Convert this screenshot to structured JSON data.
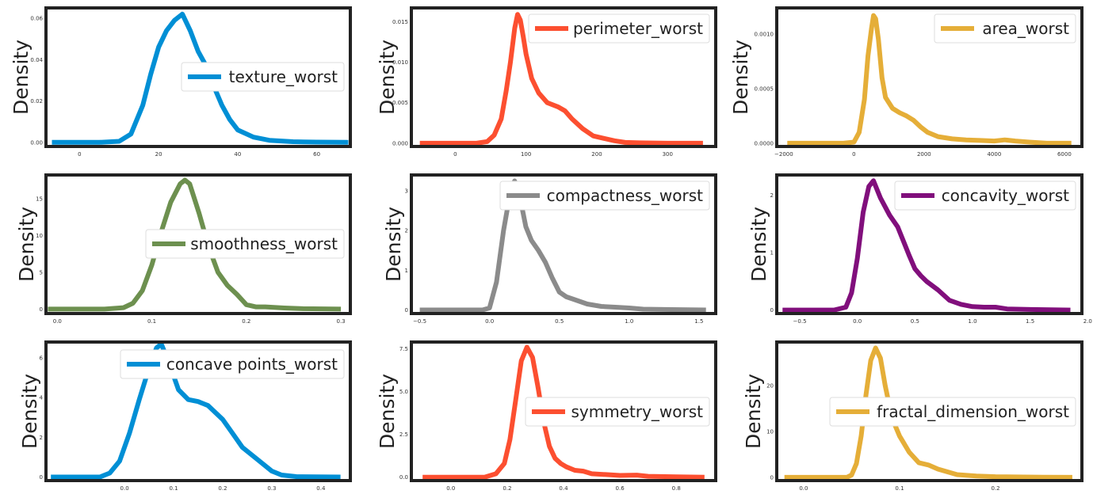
{
  "chart_data": [
    {
      "type": "line",
      "ylabel": "Density",
      "series": [
        {
          "name": "texture_worst",
          "color": "#008fd5"
        }
      ],
      "xlim": [
        -8.5,
        68.5
      ],
      "ylim": [
        -0.002,
        0.065
      ],
      "xticks": [
        0,
        20,
        40,
        60
      ],
      "xtick_labels": [
        "0",
        "20",
        "40",
        "60"
      ],
      "yticks": [
        0,
        0.02,
        0.04,
        0.06
      ],
      "ytick_labels": [
        "0.00",
        "0.02",
        "0.04",
        "0.06"
      ],
      "legend": "center-right",
      "x": [
        -7,
        5,
        10,
        13,
        16,
        18,
        20,
        22,
        24,
        26,
        28,
        30,
        32,
        34,
        36,
        38,
        40,
        44,
        48,
        54,
        60,
        68
      ],
      "y": [
        0,
        0,
        0.0005,
        0.004,
        0.018,
        0.033,
        0.046,
        0.054,
        0.059,
        0.062,
        0.054,
        0.044,
        0.037,
        0.027,
        0.018,
        0.011,
        0.006,
        0.0025,
        0.001,
        0.0003,
        0.0001,
        0
      ]
    },
    {
      "type": "line",
      "ylabel": "Density",
      "series": [
        {
          "name": "perimeter_worst",
          "color": "#fc4f30"
        }
      ],
      "xlim": [
        -62,
        368
      ],
      "ylim": [
        -0.0004,
        0.0167
      ],
      "xticks": [
        0,
        100,
        200,
        300
      ],
      "xtick_labels": [
        "0",
        "100",
        "200",
        "300"
      ],
      "yticks": [
        0,
        0.005,
        0.01,
        0.015
      ],
      "ytick_labels": [
        "0.000",
        "0.005",
        "0.010",
        "0.015"
      ],
      "legend": "top-right",
      "x": [
        -50,
        30,
        45,
        55,
        65,
        72,
        78,
        84,
        88,
        92,
        96,
        100,
        108,
        118,
        130,
        145,
        155,
        165,
        180,
        195,
        210,
        225,
        240,
        260,
        300,
        350
      ],
      "y": [
        0,
        0,
        0.0002,
        0.001,
        0.003,
        0.0065,
        0.01,
        0.0142,
        0.0159,
        0.0152,
        0.0132,
        0.011,
        0.008,
        0.0062,
        0.005,
        0.0045,
        0.004,
        0.003,
        0.0018,
        0.0009,
        0.0006,
        0.0003,
        0.0001,
        5e-05,
        0,
        0
      ]
    },
    {
      "type": "line",
      "ylabel": "Density",
      "series": [
        {
          "name": "area_worst",
          "color": "#e5ae38"
        }
      ],
      "xlim": [
        -2200,
        6500
      ],
      "ylim": [
        -3e-05,
        0.00124
      ],
      "xticks": [
        -2000,
        0,
        2000,
        4000,
        6000
      ],
      "xtick_labels": [
        "−2000",
        "0",
        "2000",
        "4000",
        "6000"
      ],
      "yticks": [
        0,
        0.0005,
        0.001
      ],
      "ytick_labels": [
        "0.0000",
        "0.0005",
        "0.0010"
      ],
      "legend": "top-right",
      "x": [
        -1900,
        -300,
        0,
        150,
        300,
        400,
        500,
        560,
        620,
        700,
        800,
        900,
        1100,
        1300,
        1500,
        1700,
        1900,
        2100,
        2400,
        2800,
        3200,
        3600,
        4000,
        4300,
        4600,
        5000,
        5500,
        6200
      ],
      "y": [
        0,
        0,
        1e-05,
        0.0001,
        0.0004,
        0.0008,
        0.00105,
        0.00117,
        0.00114,
        0.00095,
        0.0006,
        0.00042,
        0.00032,
        0.00028,
        0.00025,
        0.00021,
        0.00015,
        0.0001,
        6e-05,
        4e-05,
        3e-05,
        2.5e-05,
        2e-05,
        3e-05,
        2e-05,
        1e-05,
        0,
        0
      ]
    },
    {
      "type": "line",
      "ylabel": "Density",
      "series": [
        {
          "name": "smoothness_worst",
          "color": "#6d904f"
        }
      ],
      "xlim": [
        -0.012,
        0.31
      ],
      "ylim": [
        -0.6,
        18.2
      ],
      "xticks": [
        0.0,
        0.1,
        0.2,
        0.3
      ],
      "xtick_labels": [
        "0.0",
        "0.1",
        "0.2",
        "0.3"
      ],
      "yticks": [
        0,
        5,
        10,
        15
      ],
      "ytick_labels": [
        "0",
        "5",
        "10",
        "15"
      ],
      "legend": "center-right",
      "x": [
        -0.01,
        0.05,
        0.07,
        0.08,
        0.09,
        0.1,
        0.11,
        0.12,
        0.13,
        0.135,
        0.14,
        0.15,
        0.16,
        0.17,
        0.18,
        0.19,
        0.2,
        0.21,
        0.22,
        0.24,
        0.26,
        0.3
      ],
      "y": [
        0,
        0,
        0.2,
        0.8,
        2.5,
        6,
        10.5,
        14.5,
        17,
        17.5,
        17,
        13,
        8.5,
        5,
        3.2,
        2,
        0.6,
        0.3,
        0.3,
        0.15,
        0.05,
        0
      ]
    },
    {
      "type": "line",
      "ylabel": "Density",
      "series": [
        {
          "name": "compactness_worst",
          "color": "#8b8b8b"
        }
      ],
      "xlim": [
        -0.56,
        1.62
      ],
      "ylim": [
        -0.09,
        3.4
      ],
      "xticks": [
        -0.5,
        0.0,
        0.5,
        1.0,
        1.5
      ],
      "xtick_labels": [
        "−0.5",
        "0.0",
        "0.5",
        "1.0",
        "1.5"
      ],
      "yticks": [
        0,
        1,
        2,
        3
      ],
      "ytick_labels": [
        "0",
        "1",
        "2",
        "3"
      ],
      "legend": "top-right",
      "x": [
        -0.5,
        -0.05,
        0.0,
        0.05,
        0.1,
        0.15,
        0.18,
        0.22,
        0.26,
        0.3,
        0.35,
        0.4,
        0.45,
        0.5,
        0.55,
        0.6,
        0.7,
        0.8,
        0.9,
        1.0,
        1.1,
        1.3,
        1.55
      ],
      "y": [
        0,
        0,
        0.05,
        0.7,
        2.0,
        3.0,
        3.25,
        2.8,
        2.1,
        1.75,
        1.5,
        1.2,
        0.8,
        0.45,
        0.33,
        0.27,
        0.15,
        0.09,
        0.07,
        0.05,
        0.02,
        0.01,
        0
      ]
    },
    {
      "type": "line",
      "ylabel": "Density",
      "series": [
        {
          "name": "concavity_worst",
          "color": "#810f7c"
        }
      ],
      "xlim": [
        -0.7,
        1.95
      ],
      "ylim": [
        -0.06,
        2.35
      ],
      "xticks": [
        -0.5,
        0.0,
        0.5,
        1.0,
        1.5,
        2.0
      ],
      "xtick_labels": [
        "−0.5",
        "0.0",
        "0.5",
        "1.0",
        "1.5",
        "2.0"
      ],
      "yticks": [
        0,
        1,
        2
      ],
      "ytick_labels": [
        "0",
        "1",
        "2"
      ],
      "legend": "top-right",
      "x": [
        -0.65,
        -0.2,
        -0.1,
        -0.05,
        0.0,
        0.05,
        0.1,
        0.14,
        0.2,
        0.28,
        0.35,
        0.4,
        0.45,
        0.5,
        0.55,
        0.6,
        0.7,
        0.8,
        0.9,
        1.0,
        1.1,
        1.2,
        1.3,
        1.5,
        1.85
      ],
      "y": [
        0,
        0,
        0.05,
        0.3,
        0.9,
        1.7,
        2.15,
        2.25,
        1.95,
        1.65,
        1.45,
        1.2,
        0.95,
        0.72,
        0.6,
        0.5,
        0.35,
        0.17,
        0.1,
        0.06,
        0.05,
        0.05,
        0.02,
        0.01,
        0
      ]
    },
    {
      "type": "line",
      "ylabel": "Density",
      "series": [
        {
          "name": "concave points_worst",
          "color": "#008fd5"
        }
      ],
      "xlim": [
        -0.16,
        0.46
      ],
      "ylim": [
        -0.18,
        6.8
      ],
      "xticks": [
        0.0,
        0.1,
        0.2,
        0.3,
        0.4
      ],
      "xtick_labels": [
        "0.0",
        "0.1",
        "0.2",
        "0.3",
        "0.4"
      ],
      "yticks": [
        0,
        2,
        4,
        6
      ],
      "ytick_labels": [
        "0",
        "2",
        "4",
        "6"
      ],
      "legend": "top-right",
      "x": [
        -0.15,
        -0.05,
        -0.03,
        -0.01,
        0.01,
        0.03,
        0.05,
        0.065,
        0.075,
        0.09,
        0.11,
        0.13,
        0.15,
        0.17,
        0.2,
        0.22,
        0.24,
        0.27,
        0.3,
        0.32,
        0.35,
        0.44
      ],
      "y": [
        0,
        0,
        0.2,
        0.8,
        2.2,
        3.9,
        5.5,
        6.5,
        6.7,
        5.8,
        4.4,
        3.9,
        3.8,
        3.6,
        2.9,
        2.2,
        1.5,
        0.9,
        0.3,
        0.1,
        0.02,
        0
      ]
    },
    {
      "type": "line",
      "ylabel": "Density",
      "series": [
        {
          "name": "symmetry_worst",
          "color": "#fc4f30"
        }
      ],
      "xlim": [
        -0.14,
        0.94
      ],
      "ylim": [
        -0.2,
        7.9
      ],
      "xticks": [
        0.0,
        0.2,
        0.4,
        0.6,
        0.8
      ],
      "xtick_labels": [
        "0.0",
        "0.2",
        "0.4",
        "0.6",
        "0.8"
      ],
      "yticks": [
        0,
        2.5,
        5.0,
        7.5
      ],
      "ytick_labels": [
        "0.0",
        "2.5",
        "5.0",
        "7.5"
      ],
      "legend": "center-right",
      "x": [
        -0.1,
        0.12,
        0.16,
        0.19,
        0.21,
        0.23,
        0.25,
        0.27,
        0.29,
        0.31,
        0.33,
        0.35,
        0.37,
        0.39,
        0.41,
        0.44,
        0.47,
        0.5,
        0.55,
        0.6,
        0.66,
        0.7,
        0.8,
        0.9
      ],
      "y": [
        0,
        0,
        0.2,
        0.8,
        2.2,
        4.5,
        6.8,
        7.6,
        7.0,
        5.2,
        3.2,
        1.8,
        1.1,
        0.8,
        0.6,
        0.4,
        0.35,
        0.2,
        0.15,
        0.1,
        0.12,
        0.05,
        0.02,
        0
      ]
    },
    {
      "type": "line",
      "ylabel": "Density",
      "series": [
        {
          "name": "fractal_dimension_worst",
          "color": "#e5ae38"
        }
      ],
      "xlim": [
        -0.028,
        0.29
      ],
      "ylim": [
        -0.7,
        29.5
      ],
      "xticks": [
        0.0,
        0.1,
        0.2
      ],
      "xtick_labels": [
        "0.0",
        "0.1",
        "0.2"
      ],
      "yticks": [
        0,
        10,
        20
      ],
      "ytick_labels": [
        "0",
        "10",
        "20"
      ],
      "legend": "center-right",
      "x": [
        -0.02,
        0.045,
        0.05,
        0.055,
        0.06,
        0.065,
        0.07,
        0.075,
        0.08,
        0.085,
        0.09,
        0.095,
        0.1,
        0.11,
        0.12,
        0.13,
        0.14,
        0.15,
        0.16,
        0.18,
        0.2,
        0.22,
        0.25,
        0.28
      ],
      "y": [
        0,
        0,
        0.5,
        3,
        9,
        18,
        25.5,
        28.2,
        26,
        20,
        15,
        11.5,
        9,
        5.5,
        3.2,
        2.7,
        1.8,
        1.2,
        0.6,
        0.3,
        0.15,
        0.1,
        0.02,
        0
      ]
    }
  ]
}
